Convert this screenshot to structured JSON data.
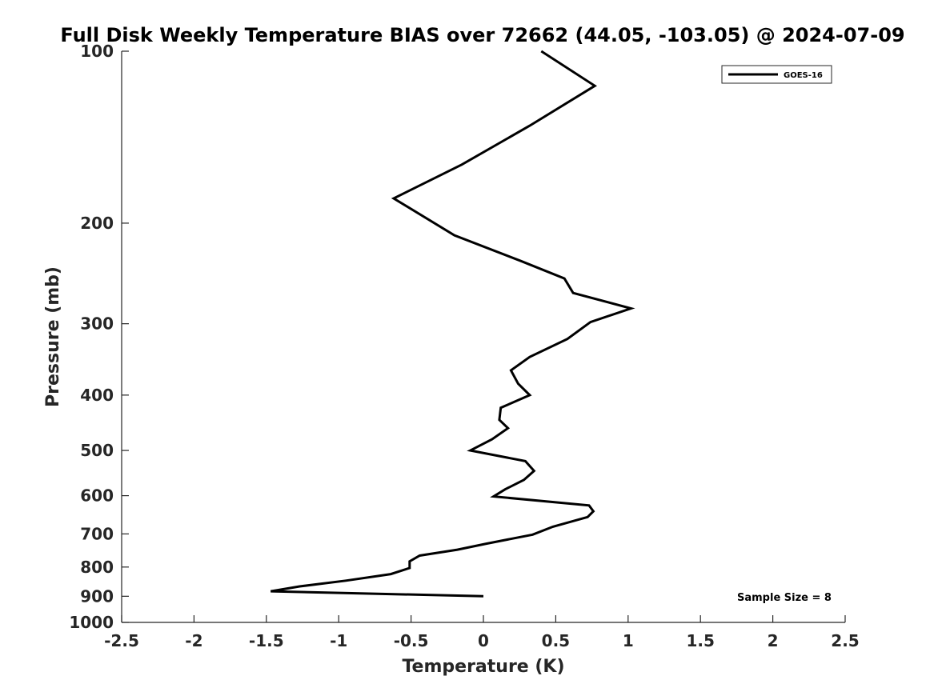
{
  "chart_data": {
    "type": "line",
    "title": "Full Disk Weekly Temperature BIAS over 72662 (44.05, -103.05) @ 2024-07-09",
    "xlabel": "Temperature (K)",
    "ylabel": "Pressure (mb)",
    "xlim": [
      -2.5,
      2.5
    ],
    "ylim": [
      100,
      1000
    ],
    "y_scale": "log",
    "y_reversed": true,
    "x_ticks": [
      -2.5,
      -2,
      -1.5,
      -1,
      -0.5,
      0,
      0.5,
      1,
      1.5,
      2,
      2.5
    ],
    "x_tick_labels": [
      "-2.5",
      "-2",
      "-1.5",
      "-1",
      "-0.5",
      "0",
      "0.5",
      "1",
      "1.5",
      "2",
      "2.5"
    ],
    "y_ticks": [
      100,
      200,
      300,
      400,
      500,
      600,
      700,
      800,
      900,
      1000
    ],
    "y_tick_labels": [
      "100",
      "200",
      "300",
      "400",
      "500",
      "600",
      "700",
      "800",
      "900",
      "1000"
    ],
    "grid": false,
    "legend_position": "top-right",
    "series": [
      {
        "name": "GOES-16",
        "color": "#000000",
        "points": [
          {
            "x": 0.4,
            "y": 100
          },
          {
            "x": 0.77,
            "y": 115
          },
          {
            "x": 0.32,
            "y": 135
          },
          {
            "x": -0.15,
            "y": 158
          },
          {
            "x": -0.62,
            "y": 181
          },
          {
            "x": -0.2,
            "y": 210
          },
          {
            "x": 0.26,
            "y": 233
          },
          {
            "x": 0.56,
            "y": 250
          },
          {
            "x": 0.62,
            "y": 265
          },
          {
            "x": 1.02,
            "y": 282
          },
          {
            "x": 0.74,
            "y": 298
          },
          {
            "x": 0.58,
            "y": 319
          },
          {
            "x": 0.32,
            "y": 343
          },
          {
            "x": 0.19,
            "y": 362
          },
          {
            "x": 0.24,
            "y": 382
          },
          {
            "x": 0.32,
            "y": 400
          },
          {
            "x": 0.12,
            "y": 421
          },
          {
            "x": 0.11,
            "y": 442
          },
          {
            "x": 0.17,
            "y": 457
          },
          {
            "x": 0.06,
            "y": 478
          },
          {
            "x": -0.09,
            "y": 500
          },
          {
            "x": 0.29,
            "y": 522
          },
          {
            "x": 0.35,
            "y": 543
          },
          {
            "x": 0.28,
            "y": 563
          },
          {
            "x": 0.15,
            "y": 585
          },
          {
            "x": 0.07,
            "y": 602
          },
          {
            "x": 0.73,
            "y": 624
          },
          {
            "x": 0.76,
            "y": 639
          },
          {
            "x": 0.72,
            "y": 654
          },
          {
            "x": 0.48,
            "y": 680
          },
          {
            "x": 0.34,
            "y": 702
          },
          {
            "x": 0.02,
            "y": 728
          },
          {
            "x": -0.18,
            "y": 746
          },
          {
            "x": -0.44,
            "y": 764
          },
          {
            "x": -0.51,
            "y": 782
          },
          {
            "x": -0.51,
            "y": 803
          },
          {
            "x": -0.64,
            "y": 823
          },
          {
            "x": -0.95,
            "y": 845
          },
          {
            "x": -1.27,
            "y": 865
          },
          {
            "x": -1.47,
            "y": 882
          },
          {
            "x": 0.0,
            "y": 900
          }
        ]
      }
    ],
    "annotation": "Sample Size = 8"
  }
}
